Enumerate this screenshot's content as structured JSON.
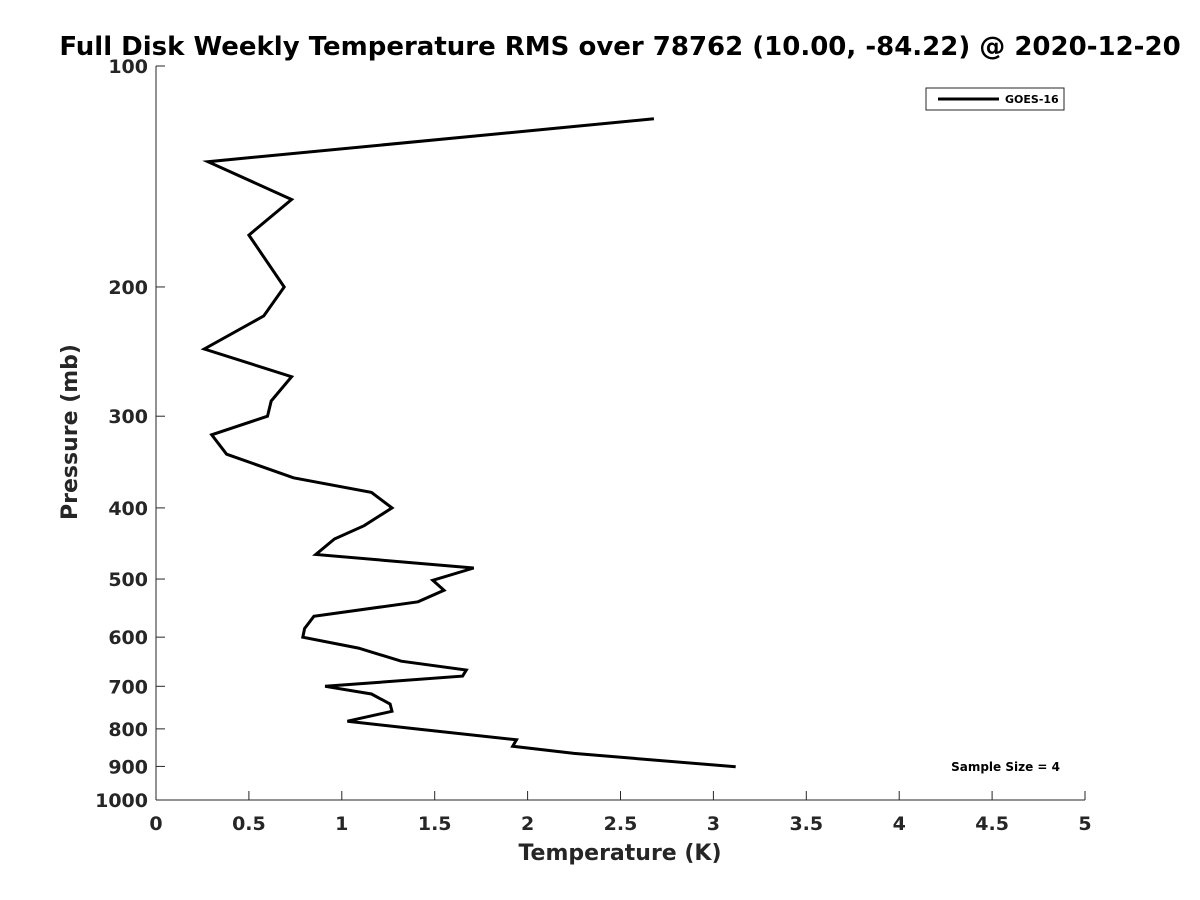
{
  "chart_data": {
    "type": "line",
    "title": "Full Disk Weekly Temperature RMS over 78762 (10.00, -84.22) @ 2020-12-20",
    "xlabel": "Temperature (K)",
    "ylabel": "Pressure (mb)",
    "xlim": [
      0,
      5
    ],
    "ylim": [
      100,
      1000
    ],
    "y_scale": "log",
    "y_reversed": true,
    "grid": false,
    "legend_position": "top-right",
    "x_ticks": [
      0,
      0.5,
      1,
      1.5,
      2,
      2.5,
      3,
      3.5,
      4,
      4.5,
      5
    ],
    "x_tick_labels": [
      "0",
      "0.5",
      "1",
      "1.5",
      "2",
      "2.5",
      "3",
      "3.5",
      "4",
      "4.5",
      "5"
    ],
    "y_ticks": [
      100,
      200,
      300,
      400,
      500,
      600,
      700,
      800,
      900,
      1000
    ],
    "y_tick_labels": [
      "100",
      "200",
      "300",
      "400",
      "500",
      "600",
      "700",
      "800",
      "900",
      "1000"
    ],
    "series": [
      {
        "name": "GOES-16",
        "color": "#000000",
        "points": [
          {
            "x": 2.68,
            "y": 118
          },
          {
            "x": 0.28,
            "y": 135
          },
          {
            "x": 0.73,
            "y": 152
          },
          {
            "x": 0.5,
            "y": 170
          },
          {
            "x": 0.69,
            "y": 200
          },
          {
            "x": 0.58,
            "y": 219
          },
          {
            "x": 0.26,
            "y": 243
          },
          {
            "x": 0.73,
            "y": 265
          },
          {
            "x": 0.62,
            "y": 286
          },
          {
            "x": 0.6,
            "y": 300
          },
          {
            "x": 0.3,
            "y": 318
          },
          {
            "x": 0.38,
            "y": 338
          },
          {
            "x": 0.74,
            "y": 364
          },
          {
            "x": 1.16,
            "y": 381
          },
          {
            "x": 1.27,
            "y": 400
          },
          {
            "x": 1.12,
            "y": 423
          },
          {
            "x": 0.96,
            "y": 441
          },
          {
            "x": 0.86,
            "y": 463
          },
          {
            "x": 1.71,
            "y": 483
          },
          {
            "x": 1.49,
            "y": 502
          },
          {
            "x": 1.55,
            "y": 518
          },
          {
            "x": 1.41,
            "y": 537
          },
          {
            "x": 0.85,
            "y": 562
          },
          {
            "x": 0.8,
            "y": 584
          },
          {
            "x": 0.79,
            "y": 600
          },
          {
            "x": 1.09,
            "y": 621
          },
          {
            "x": 1.32,
            "y": 647
          },
          {
            "x": 1.67,
            "y": 665
          },
          {
            "x": 1.65,
            "y": 678
          },
          {
            "x": 0.91,
            "y": 700
          },
          {
            "x": 1.16,
            "y": 717
          },
          {
            "x": 1.26,
            "y": 740
          },
          {
            "x": 1.27,
            "y": 757
          },
          {
            "x": 1.03,
            "y": 781
          },
          {
            "x": 1.4,
            "y": 800
          },
          {
            "x": 1.94,
            "y": 828
          },
          {
            "x": 1.92,
            "y": 845
          },
          {
            "x": 2.25,
            "y": 864
          },
          {
            "x": 3.12,
            "y": 901
          }
        ]
      }
    ],
    "annotations": [
      "Sample Size = 4"
    ]
  }
}
